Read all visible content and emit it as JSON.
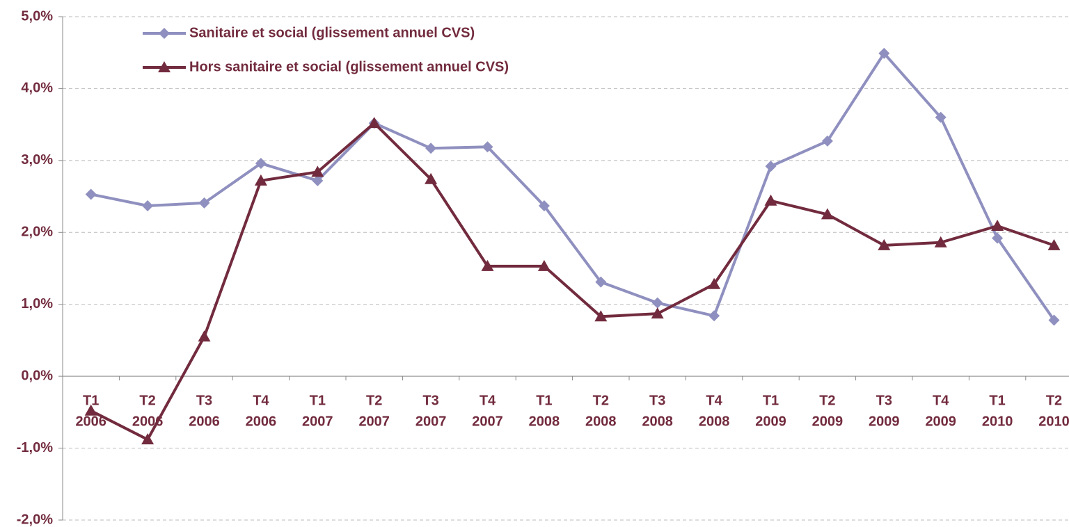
{
  "chart_data": {
    "type": "line",
    "categories": [
      [
        "T1",
        "2006"
      ],
      [
        "T2",
        "2006"
      ],
      [
        "T3",
        "2006"
      ],
      [
        "T4",
        "2006"
      ],
      [
        "T1",
        "2007"
      ],
      [
        "T2",
        "2007"
      ],
      [
        "T3",
        "2007"
      ],
      [
        "T4",
        "2007"
      ],
      [
        "T1",
        "2008"
      ],
      [
        "T2",
        "2008"
      ],
      [
        "T3",
        "2008"
      ],
      [
        "T4",
        "2008"
      ],
      [
        "T1",
        "2009"
      ],
      [
        "T2",
        "2009"
      ],
      [
        "T3",
        "2009"
      ],
      [
        "T4",
        "2009"
      ],
      [
        "T1",
        "2010"
      ],
      [
        "T2",
        "2010"
      ]
    ],
    "series": [
      {
        "name": "Sanitaire et social (glissement annuel CVS)",
        "color": "#8f90bf",
        "marker": "diamond",
        "values": [
          2.53,
          2.37,
          2.41,
          2.96,
          2.72,
          3.52,
          3.17,
          3.19,
          2.37,
          1.31,
          1.02,
          0.84,
          2.92,
          3.27,
          4.49,
          3.6,
          1.92,
          0.78
        ]
      },
      {
        "name": "Hors sanitaire et social (glissement annuel CVS)",
        "color": "#722b3e",
        "marker": "triangle",
        "values": [
          -0.48,
          -0.88,
          0.55,
          2.72,
          2.84,
          3.52,
          2.74,
          1.53,
          1.53,
          0.83,
          0.87,
          1.28,
          2.44,
          2.25,
          1.82,
          1.86,
          2.09,
          1.82
        ]
      }
    ],
    "ylim": [
      -2,
      5
    ],
    "yticks": [
      {
        "value": -2,
        "label": "-2,0%"
      },
      {
        "value": -1,
        "label": "-1,0%"
      },
      {
        "value": 0,
        "label": "0,0%"
      },
      {
        "value": 1,
        "label": "1,0%"
      },
      {
        "value": 2,
        "label": "2,0%"
      },
      {
        "value": 3,
        "label": "3,0%"
      },
      {
        "value": 4,
        "label": "4,0%"
      },
      {
        "value": 5,
        "label": "5,0%"
      }
    ],
    "grid": true,
    "legend": "top-left"
  }
}
